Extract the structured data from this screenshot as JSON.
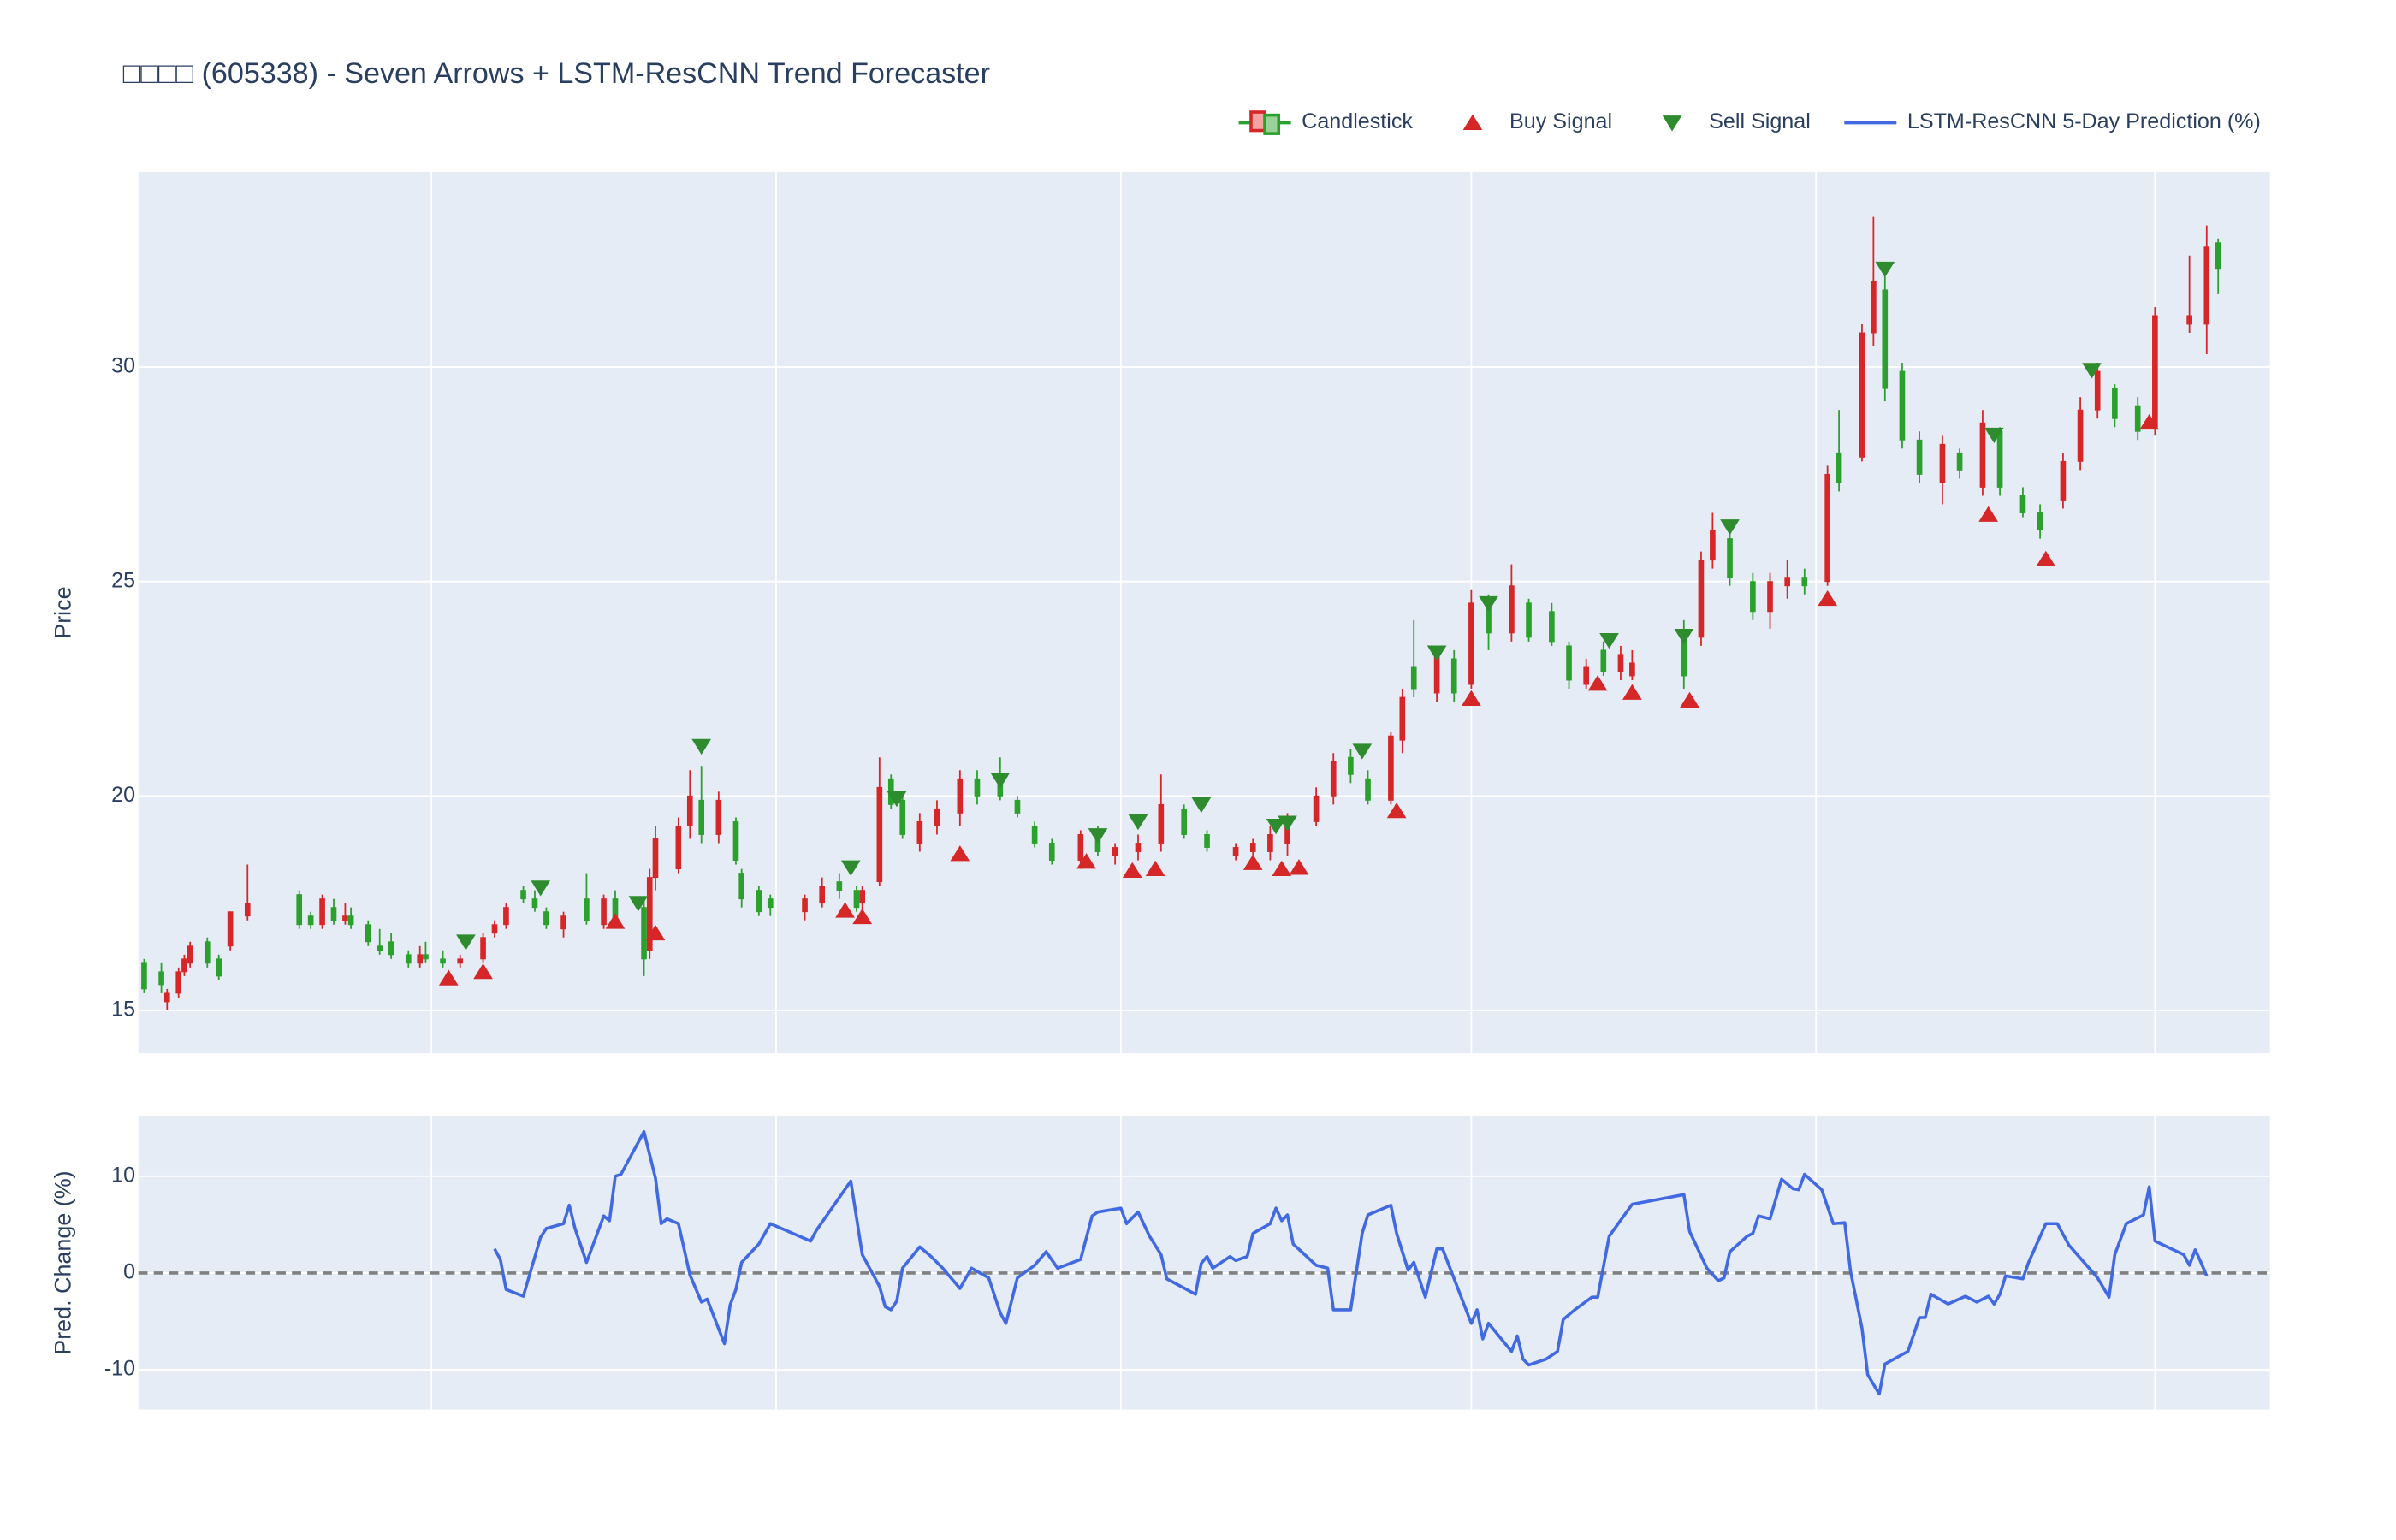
{
  "chart_data": [
    {
      "type": "candlestick",
      "title": "□□□□ (605338) - Seven Arrows + LSTM-ResCNN Trend Forecaster",
      "name": "Candlestick",
      "y_label": "Price",
      "legend": "top-right",
      "increasing_color": "#d62728",
      "decreasing_color": "#2ca02c",
      "plot_bgcolor": "#e5ecf6",
      "grid": true,
      "xlim": [
        -1,
        370
      ],
      "xticks": [
        50,
        110,
        170,
        231,
        291,
        350
      ],
      "xtick_labels": false,
      "ylim": [
        14.0,
        34.55
      ],
      "yticks": [
        15,
        20,
        25,
        30
      ],
      "x": [
        0,
        3,
        4,
        6,
        7,
        8,
        11,
        13,
        15,
        18,
        27,
        29,
        31,
        33,
        35,
        36,
        39,
        41,
        43,
        46,
        48,
        49,
        52,
        55,
        59,
        61,
        63,
        66,
        68,
        70,
        73,
        77,
        80,
        82,
        87,
        88,
        89,
        93,
        95,
        97,
        100,
        103,
        104,
        107,
        109,
        115,
        118,
        121,
        124,
        125,
        128,
        130,
        132,
        135,
        138,
        142,
        145,
        149,
        152,
        155,
        158,
        163,
        166,
        169,
        173,
        177,
        181,
        185,
        190,
        193,
        196,
        199,
        204,
        207,
        210,
        213,
        217,
        219,
        221,
        225,
        228,
        231,
        234,
        238,
        241,
        245,
        248,
        251,
        254,
        257,
        259,
        268,
        271,
        273,
        276,
        280,
        283,
        286,
        289,
        293,
        295,
        299,
        301,
        303,
        306,
        309,
        313,
        316,
        320,
        323,
        327,
        330,
        334,
        337,
        340,
        343,
        347,
        350,
        356,
        359,
        361
      ],
      "open": [
        16.1,
        15.9,
        15.2,
        15.4,
        15.9,
        16.1,
        16.6,
        16.2,
        16.5,
        17.2,
        17.7,
        17.2,
        17.0,
        17.4,
        17.1,
        17.2,
        17.0,
        16.5,
        16.6,
        16.3,
        16.1,
        16.3,
        16.2,
        16.1,
        16.2,
        16.8,
        17.0,
        17.8,
        17.6,
        17.3,
        16.9,
        17.6,
        17.0,
        17.6,
        17.4,
        16.4,
        18.1,
        18.3,
        19.3,
        19.9,
        19.1,
        19.4,
        18.2,
        17.8,
        17.6,
        17.3,
        17.5,
        18.0,
        17.8,
        17.5,
        18.0,
        20.4,
        19.9,
        18.9,
        19.3,
        19.6,
        20.4,
        20.5,
        19.9,
        19.3,
        18.9,
        18.5,
        19.0,
        18.6,
        18.7,
        18.9,
        19.7,
        19.1,
        18.6,
        18.7,
        18.7,
        18.9,
        19.4,
        20.0,
        20.9,
        20.4,
        19.9,
        21.3,
        23.0,
        22.4,
        23.2,
        22.6,
        24.4,
        23.8,
        24.5,
        24.3,
        23.5,
        22.6,
        23.4,
        22.9,
        22.8,
        23.7,
        23.7,
        25.5,
        26.0,
        25.0,
        24.3,
        24.9,
        25.1,
        25.0,
        28.0,
        27.9,
        30.8,
        31.8,
        29.9,
        28.3,
        27.3,
        28.0,
        27.2,
        28.5,
        27.0,
        26.6,
        26.9,
        27.8,
        29.0,
        29.5,
        29.1,
        28.6,
        31.0,
        31.0,
        32.9
      ],
      "high": [
        16.2,
        16.1,
        15.5,
        16.0,
        16.3,
        16.6,
        16.7,
        16.3,
        17.3,
        18.4,
        17.8,
        17.3,
        17.7,
        17.6,
        17.5,
        17.4,
        17.1,
        16.9,
        16.8,
        16.4,
        16.5,
        16.6,
        16.4,
        16.3,
        16.8,
        17.1,
        17.5,
        17.9,
        17.8,
        17.4,
        17.3,
        18.2,
        17.7,
        17.8,
        17.6,
        18.3,
        19.3,
        19.5,
        20.6,
        20.7,
        20.1,
        19.5,
        18.3,
        17.9,
        17.7,
        17.7,
        18.1,
        18.2,
        17.9,
        17.9,
        20.9,
        20.5,
        20.1,
        19.6,
        19.9,
        20.6,
        20.6,
        20.9,
        20.0,
        19.4,
        19.0,
        19.2,
        19.3,
        18.9,
        19.1,
        20.5,
        19.8,
        19.2,
        18.9,
        19.0,
        19.3,
        19.6,
        20.2,
        21.0,
        21.1,
        20.6,
        21.5,
        22.5,
        24.1,
        23.5,
        23.4,
        24.8,
        24.7,
        25.4,
        24.6,
        24.5,
        23.6,
        23.2,
        23.6,
        23.5,
        23.4,
        24.1,
        25.7,
        26.6,
        26.2,
        25.2,
        25.2,
        25.5,
        25.3,
        27.7,
        29.0,
        31.0,
        33.5,
        32.2,
        30.1,
        28.5,
        28.4,
        28.1,
        29.0,
        28.6,
        27.2,
        26.8,
        28.0,
        29.3,
        30.1,
        29.6,
        29.3,
        31.4,
        32.6,
        33.3,
        33.0
      ],
      "low": [
        15.4,
        15.4,
        15.0,
        15.3,
        15.8,
        16.0,
        16.0,
        15.7,
        16.4,
        17.1,
        16.9,
        16.9,
        16.9,
        17.0,
        17.0,
        16.9,
        16.5,
        16.3,
        16.2,
        16.0,
        16.0,
        16.1,
        16.0,
        16.0,
        16.1,
        16.7,
        16.9,
        17.5,
        17.3,
        16.9,
        16.7,
        17.0,
        16.9,
        17.0,
        15.8,
        16.2,
        17.8,
        18.2,
        19.0,
        18.9,
        18.9,
        18.4,
        17.4,
        17.2,
        17.2,
        17.1,
        17.4,
        17.6,
        17.3,
        17.3,
        17.9,
        19.7,
        19.0,
        18.7,
        19.1,
        19.3,
        19.8,
        19.9,
        19.5,
        18.8,
        18.4,
        18.3,
        18.6,
        18.4,
        18.5,
        18.7,
        19.0,
        18.7,
        18.5,
        18.5,
        18.5,
        18.6,
        19.3,
        19.8,
        20.3,
        19.8,
        19.8,
        21.0,
        22.3,
        22.2,
        22.2,
        22.5,
        23.4,
        23.6,
        23.6,
        23.5,
        22.5,
        22.5,
        22.8,
        22.7,
        22.7,
        22.5,
        23.5,
        25.3,
        24.9,
        24.1,
        23.9,
        24.6,
        24.7,
        24.9,
        27.1,
        27.8,
        30.5,
        29.2,
        28.1,
        27.3,
        26.8,
        27.4,
        27.0,
        27.0,
        26.5,
        26.0,
        26.7,
        27.6,
        28.8,
        28.6,
        28.3,
        28.4,
        30.8,
        30.3,
        31.7
      ],
      "close": [
        15.5,
        15.6,
        15.4,
        15.9,
        16.2,
        16.5,
        16.1,
        15.8,
        17.3,
        17.5,
        17.0,
        17.0,
        17.6,
        17.1,
        17.2,
        17.0,
        16.6,
        16.4,
        16.3,
        16.1,
        16.3,
        16.2,
        16.1,
        16.2,
        16.7,
        17.0,
        17.4,
        17.6,
        17.4,
        17.0,
        17.2,
        17.1,
        17.6,
        17.1,
        16.2,
        18.1,
        19.0,
        19.3,
        20.0,
        19.1,
        19.9,
        18.5,
        17.6,
        17.3,
        17.4,
        17.6,
        17.9,
        17.8,
        17.4,
        17.8,
        20.2,
        19.8,
        19.1,
        19.4,
        19.7,
        20.4,
        20.0,
        20.0,
        19.6,
        18.9,
        18.5,
        19.1,
        18.7,
        18.8,
        18.9,
        19.8,
        19.1,
        18.8,
        18.8,
        18.9,
        19.1,
        19.5,
        20.0,
        20.8,
        20.5,
        19.9,
        21.4,
        22.3,
        22.5,
        23.3,
        22.4,
        24.5,
        23.8,
        24.9,
        23.7,
        23.6,
        22.7,
        23.0,
        22.9,
        23.3,
        23.1,
        22.8,
        25.5,
        26.2,
        25.1,
        24.3,
        25.0,
        25.1,
        24.9,
        27.5,
        27.3,
        30.8,
        32.0,
        29.5,
        28.3,
        27.5,
        28.2,
        27.6,
        28.7,
        27.2,
        26.6,
        26.2,
        27.8,
        29.0,
        29.9,
        28.8,
        28.5,
        31.2,
        31.2,
        32.8,
        32.3
      ],
      "markers": [
        {
          "name": "Buy Signal",
          "symbol": "triangle-up",
          "color": "#d62728",
          "x": [
            53,
            59,
            82,
            89,
            122,
            125,
            142,
            164,
            172,
            176,
            193,
            198,
            201,
            218,
            231,
            253,
            259,
            269,
            293,
            321,
            331,
            349
          ],
          "values": [
            15.75,
            15.9,
            17.07,
            16.8,
            17.33,
            17.18,
            18.65,
            18.47,
            18.26,
            18.3,
            18.44,
            18.3,
            18.33,
            19.65,
            22.27,
            22.62,
            22.41,
            22.23,
            24.6,
            26.56,
            25.52,
            28.71
          ]
        },
        {
          "name": "Sell Signal",
          "symbol": "triangle-down",
          "color": "#2e8b2e",
          "x": [
            56,
            69,
            86,
            97,
            123,
            131,
            149,
            166,
            173,
            184,
            197,
            199,
            212,
            225,
            234,
            255,
            268,
            276,
            303,
            322,
            339
          ],
          "values": [
            16.6,
            17.86,
            17.5,
            21.16,
            18.33,
            19.94,
            20.37,
            19.08,
            19.4,
            19.8,
            19.3,
            19.37,
            21.05,
            23.34,
            24.49,
            23.63,
            23.73,
            26.28,
            32.29,
            28.42,
            29.93
          ]
        }
      ]
    },
    {
      "type": "line",
      "y_label": "Pred. Change (%)",
      "plot_bgcolor": "#e5ecf6",
      "grid": true,
      "xlim": [
        -1,
        370
      ],
      "xticks": [
        50,
        110,
        170,
        231,
        291,
        350
      ],
      "xtick_labels": false,
      "ylim": [
        -14.1,
        16.2
      ],
      "yticks": [
        -10,
        0,
        10
      ],
      "hline": {
        "value": 0,
        "color": "#808080",
        "dash": true
      },
      "series": [
        {
          "name": "LSTM-ResCNN 5-Day Prediction (%)",
          "color": "#4169e1",
          "x": [
            61,
            62,
            63,
            66,
            69,
            70,
            73,
            74,
            75,
            77,
            80,
            81,
            82,
            83,
            87,
            89,
            90,
            91,
            93,
            95,
            97,
            98,
            101,
            102,
            103,
            104,
            107,
            109,
            116,
            117,
            123,
            125,
            128,
            129,
            130,
            131,
            132,
            135,
            137,
            139,
            142,
            144,
            147,
            149,
            150,
            152,
            155,
            157,
            159,
            163,
            165,
            166,
            170,
            171,
            173,
            175,
            177,
            178,
            183,
            184,
            185,
            186,
            189,
            190,
            192,
            193,
            196,
            197,
            198,
            199,
            200,
            204,
            206,
            207,
            210,
            212,
            213,
            217,
            218,
            220,
            221,
            223,
            225,
            226,
            231,
            232,
            233,
            234,
            238,
            239,
            240,
            241,
            244,
            246,
            247,
            249,
            252,
            253,
            255,
            259,
            268,
            269,
            272,
            274,
            275,
            276,
            279,
            280,
            281,
            283,
            285,
            287,
            288,
            289,
            292,
            294,
            296,
            297,
            299,
            300,
            302,
            303,
            307,
            309,
            310,
            311,
            314,
            317,
            319,
            321,
            322,
            323,
            324,
            327,
            328,
            331,
            333,
            335,
            340,
            342,
            343,
            345,
            348,
            349,
            350,
            355,
            356,
            357,
            358,
            359
          ],
          "values": [
            2.5,
            1.4,
            -1.7,
            -2.4,
            3.7,
            4.6,
            5.1,
            7.0,
            4.6,
            1.1,
            5.9,
            5.4,
            10.0,
            10.2,
            14.6,
            9.8,
            5.1,
            5.6,
            5.1,
            -0.2,
            -3.0,
            -2.7,
            -7.3,
            -3.3,
            -1.7,
            1.1,
            3.0,
            5.1,
            3.3,
            4.4,
            9.5,
            1.9,
            -1.4,
            -3.5,
            -3.8,
            -2.9,
            0.5,
            2.7,
            1.7,
            0.5,
            -1.6,
            0.5,
            -0.5,
            -4.1,
            -5.2,
            -0.5,
            0.8,
            2.2,
            0.5,
            1.4,
            5.9,
            6.3,
            6.7,
            5.1,
            6.3,
            3.8,
            1.9,
            -0.6,
            -2.2,
            1.0,
            1.7,
            0.5,
            1.7,
            1.3,
            1.7,
            4.1,
            5.1,
            6.7,
            5.4,
            6.0,
            3.0,
            0.8,
            0.5,
            -3.8,
            -3.8,
            4.1,
            6.0,
            7.0,
            4.1,
            0.3,
            1.1,
            -2.5,
            2.5,
            2.5,
            -5.2,
            -3.8,
            -6.8,
            -5.2,
            -8.1,
            -6.5,
            -8.9,
            -9.5,
            -8.9,
            -8.1,
            -4.8,
            -3.8,
            -2.5,
            -2.5,
            3.8,
            7.1,
            8.1,
            4.3,
            0.5,
            -0.8,
            -0.5,
            2.2,
            3.8,
            4.1,
            5.9,
            5.6,
            9.7,
            8.7,
            8.6,
            10.2,
            8.6,
            5.1,
            5.2,
            0.2,
            -5.7,
            -10.5,
            -12.5,
            -9.4,
            -8.1,
            -4.6,
            -4.6,
            -2.2,
            -3.2,
            -2.4,
            -3.0,
            -2.4,
            -3.2,
            -2.2,
            -0.3,
            -0.6,
            1.1,
            5.1,
            5.1,
            2.9,
            -0.5,
            -2.5,
            1.9,
            5.1,
            6.0,
            8.9,
            3.3,
            1.9,
            0.8,
            2.4,
            1.1,
            -0.3
          ]
        }
      ]
    }
  ]
}
